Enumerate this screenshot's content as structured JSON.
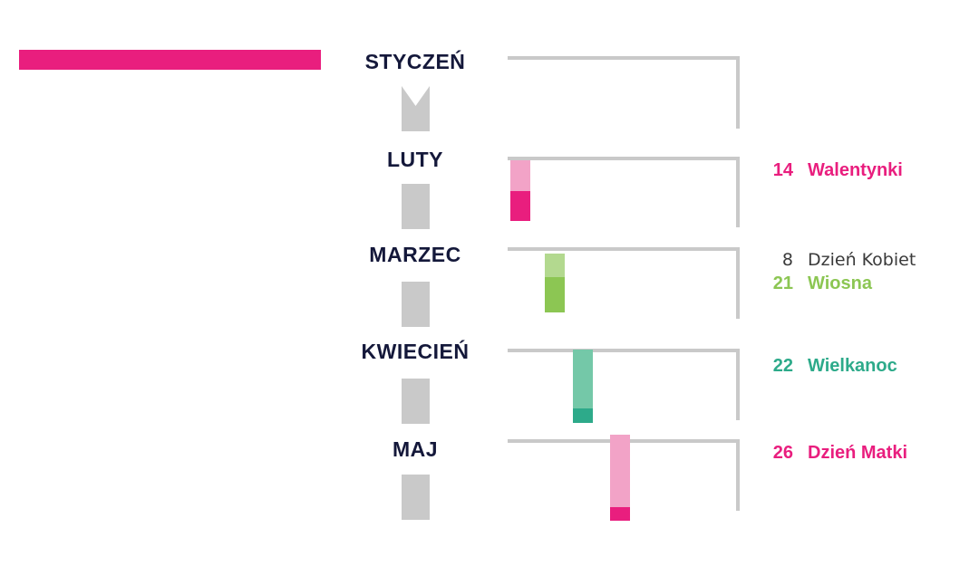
{
  "colors": {
    "pink": "#e91e7e",
    "pink_light": "#f2a3c7",
    "green": "#8cc653",
    "green_light": "#b3d98f",
    "teal": "#2daa8a",
    "teal_light": "#74c8a8",
    "gray": "#c9c9c9",
    "navy": "#14183a"
  },
  "months": [
    {
      "label": "STYCZEŃ"
    },
    {
      "label": "LUTY"
    },
    {
      "label": "MARZEC"
    },
    {
      "label": "KWIECIEŃ"
    },
    {
      "label": "MAJ"
    }
  ],
  "events": [
    {
      "day": "14",
      "name": "Walentynki",
      "color": "#e91e7e",
      "weight": "bold"
    },
    {
      "day": "8",
      "name": "Dzień Kobiet",
      "color": "#3a3a3a",
      "weight": "normal"
    },
    {
      "day": "21",
      "name": "Wiosna",
      "color": "#8cc653",
      "weight": "bold"
    },
    {
      "day": "22",
      "name": "Wielkanoc",
      "color": "#2daa8a",
      "weight": "bold"
    },
    {
      "day": "26",
      "name": "Dzień Matki",
      "color": "#e91e7e",
      "weight": "bold"
    }
  ]
}
